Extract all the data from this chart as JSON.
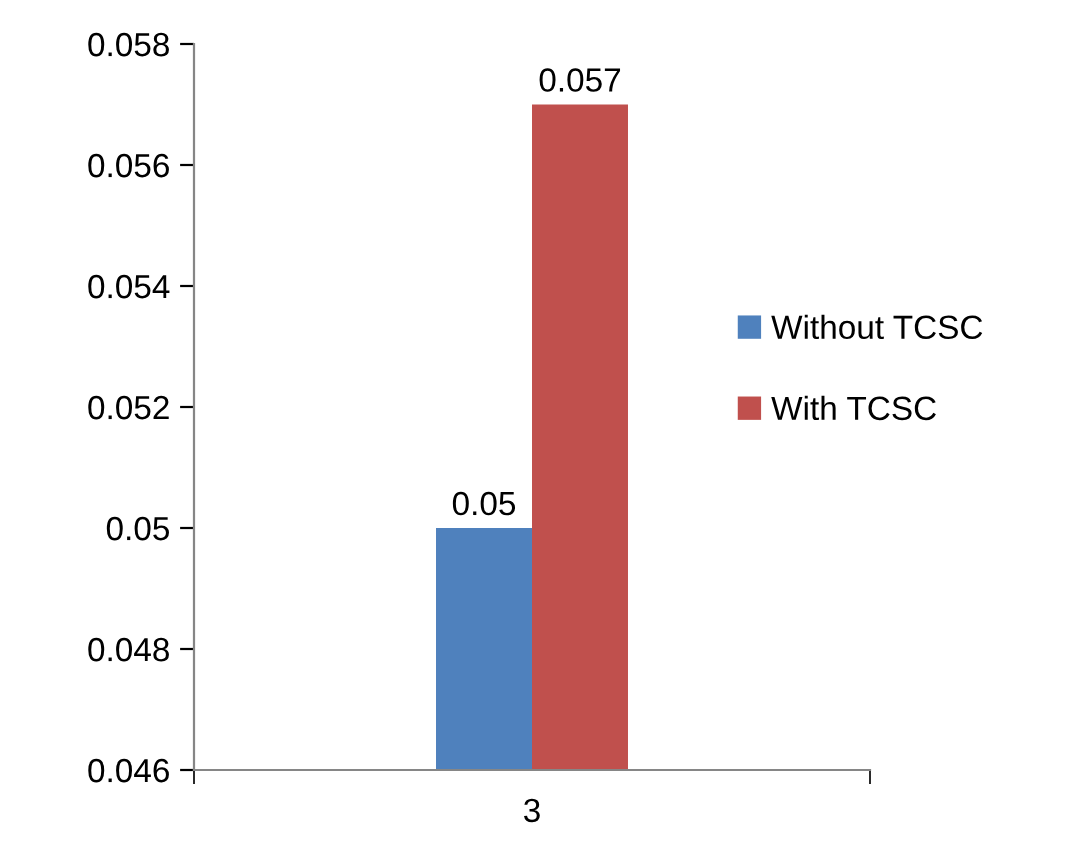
{
  "chart_data": {
    "type": "bar",
    "categories": [
      "3"
    ],
    "series": [
      {
        "name": "Without TCSC",
        "color": "#4f81bd",
        "values": [
          0.05
        ]
      },
      {
        "name": "With TCSC",
        "color": "#c0504d",
        "values": [
          0.057
        ]
      }
    ],
    "ylim": [
      0.046,
      0.058
    ],
    "yticks": [
      0.046,
      0.048,
      0.05,
      0.052,
      0.054,
      0.056,
      0.058
    ],
    "data_labels": true,
    "legend": "right",
    "grid": false
  }
}
